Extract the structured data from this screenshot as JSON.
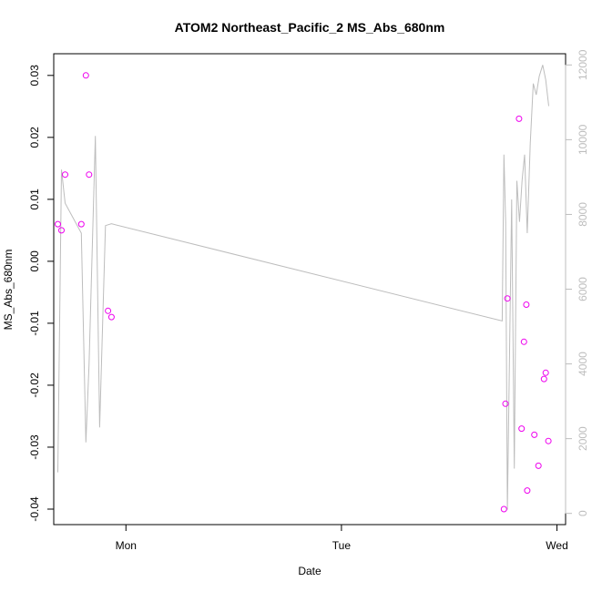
{
  "chart_data": {
    "type": "scatter",
    "title": "ATOM2 Northeast_Pacific_2 MS_Abs_680nm",
    "xlabel": "Date",
    "ylabel": "MS_Abs_680nm",
    "x_axis": {
      "type": "date",
      "ticks": [
        {
          "label": "Mon",
          "value": 1.0
        },
        {
          "label": "Tue",
          "value": 2.0
        },
        {
          "label": "Wed",
          "value": 3.0
        }
      ],
      "xlim": [
        0.665,
        3.04
      ]
    },
    "y_axis_left": {
      "ticks": [
        -0.04,
        -0.03,
        -0.02,
        -0.01,
        0.0,
        0.01,
        0.02,
        0.03
      ],
      "tick_labels": [
        "-0.04",
        "-0.03",
        "-0.02",
        "-0.01",
        "0.00",
        "0.01",
        "0.02",
        "0.03"
      ],
      "ylim": [
        -0.0425,
        0.0335
      ]
    },
    "y_axis_right": {
      "ticks": [
        0,
        2000,
        4000,
        6000,
        8000,
        10000,
        12000
      ],
      "tick_labels": [
        "0",
        "2000",
        "4000",
        "6000",
        "8000",
        "10000",
        "12000"
      ],
      "ylim": [
        -300,
        12300
      ]
    },
    "colors": {
      "points": "#ee00ee",
      "line": "#bdbdbd",
      "axis": "#000000",
      "right_axis": "#bdbdbd"
    },
    "series": [
      {
        "kind": "points",
        "axis": "left",
        "x": [
          0.684,
          0.701,
          0.718,
          0.793,
          0.814,
          0.829,
          0.917,
          0.933,
          2.754,
          2.761,
          2.77,
          2.824,
          2.836,
          2.847,
          2.858,
          2.862,
          2.895,
          2.914,
          2.94,
          2.948,
          2.96
        ],
        "y": [
          0.006,
          0.005,
          0.014,
          0.006,
          0.03,
          0.014,
          -0.008,
          -0.009,
          -0.04,
          -0.023,
          -0.006,
          0.023,
          -0.027,
          -0.013,
          -0.007,
          -0.037,
          -0.028,
          -0.033,
          -0.019,
          -0.018,
          -0.029
        ]
      },
      {
        "kind": "line",
        "axis": "right",
        "x": [
          0.684,
          0.701,
          0.718,
          0.793,
          0.814,
          0.829,
          0.858,
          0.878,
          0.905,
          0.933,
          2.746,
          2.754,
          2.762,
          2.77,
          2.79,
          2.802,
          2.814,
          2.826,
          2.838,
          2.85,
          2.862,
          2.876,
          2.89,
          2.904,
          2.918,
          2.934,
          2.948,
          2.962
        ],
        "y": [
          1100,
          9200,
          8300,
          7500,
          1900,
          4000,
          10100,
          2300,
          7700,
          7750,
          5150,
          9600,
          7800,
          100,
          8400,
          1200,
          8900,
          7800,
          8900,
          9600,
          7500,
          9900,
          11500,
          11200,
          11700,
          12000,
          11600,
          10900
        ]
      }
    ]
  }
}
